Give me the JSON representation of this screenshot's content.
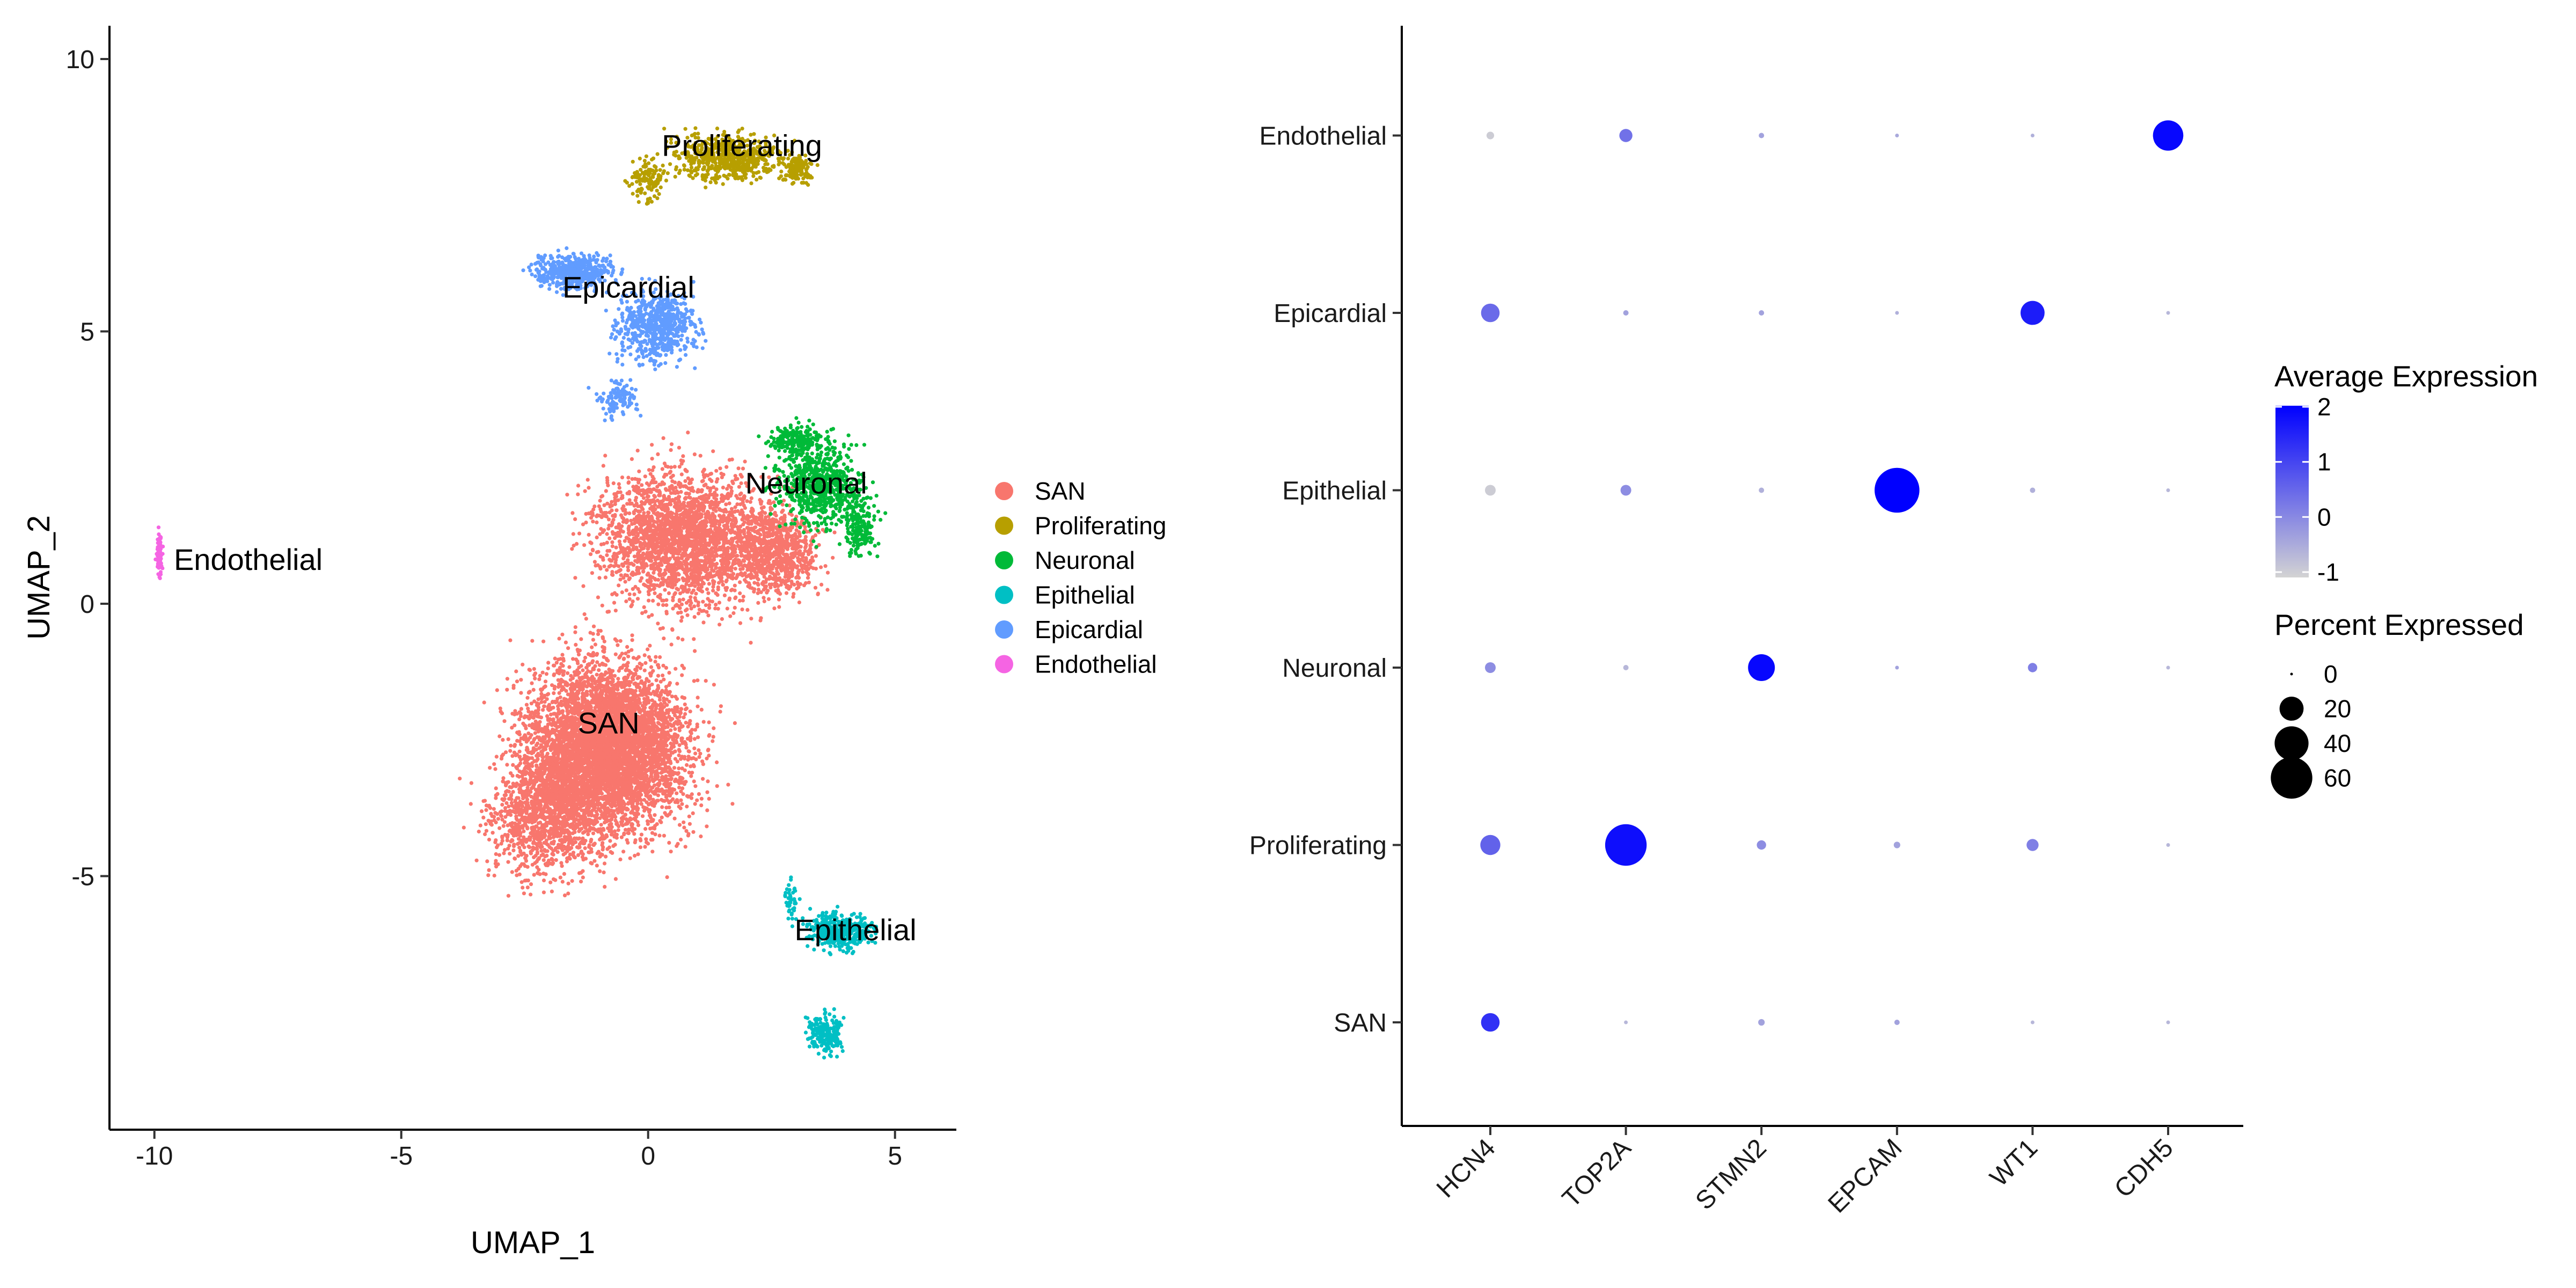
{
  "chart_data": [
    {
      "type": "scatter",
      "xlabel": "UMAP_1",
      "ylabel": "UMAP_2",
      "xlim": [
        -11.0,
        6.1
      ],
      "ylim": [
        -9.5,
        10.5
      ],
      "xticks": [
        -10,
        -5,
        0,
        5
      ],
      "yticks": [
        -5,
        0,
        5,
        10
      ],
      "xtick_labels": [
        "-10",
        "-5",
        "0",
        "5"
      ],
      "ytick_labels": [
        "-5",
        "0",
        "5",
        "10"
      ],
      "grid": false,
      "legend_position": "right",
      "series": [
        {
          "name": "SAN",
          "color": "#F8766D",
          "label_at": [
            -0.8,
            -2.2
          ]
        },
        {
          "name": "Proliferating",
          "color": "#B79F00",
          "label_at": [
            1.9,
            8.4
          ]
        },
        {
          "name": "Neuronal",
          "color": "#00BA38",
          "label_at": [
            3.2,
            2.2
          ]
        },
        {
          "name": "Epithelial",
          "color": "#00BFC4",
          "label_at": [
            4.2,
            -6.0
          ]
        },
        {
          "name": "Epicardial",
          "color": "#619CFF",
          "label_at": [
            -0.4,
            5.8
          ]
        },
        {
          "name": "Endothelial",
          "color": "#F564E3",
          "label_at": [
            -8.1,
            0.8
          ]
        }
      ]
    },
    {
      "type": "dot",
      "categories_x": [
        "HCN4",
        "TOP2A",
        "STMN2",
        "EPCAM",
        "WT1",
        "CDH5"
      ],
      "categories_y": [
        "SAN",
        "Proliferating",
        "Neuronal",
        "Epithelial",
        "Epicardial",
        "Endothelial"
      ],
      "color_legend": {
        "title": "Average Expression",
        "range": [
          -1,
          2
        ],
        "ticks": [
          2,
          1,
          0,
          -1
        ],
        "tick_labels": [
          "2",
          "1",
          "0",
          "-1"
        ],
        "low_color": "#D3D3D3",
        "high_color": "#0000FF"
      },
      "size_legend": {
        "title": "Percent Expressed",
        "values": [
          0,
          20,
          40,
          60
        ],
        "labels": [
          "0",
          "20",
          "40",
          "60"
        ]
      },
      "points": [
        {
          "x": "HCN4",
          "y": "SAN",
          "avg_exp": 1.3,
          "pct": 12
        },
        {
          "x": "TOP2A",
          "y": "SAN",
          "avg_exp": -0.6,
          "pct": 0.5
        },
        {
          "x": "STMN2",
          "y": "SAN",
          "avg_exp": -0.3,
          "pct": 1.5
        },
        {
          "x": "EPCAM",
          "y": "SAN",
          "avg_exp": -0.3,
          "pct": 1
        },
        {
          "x": "WT1",
          "y": "SAN",
          "avg_exp": -0.6,
          "pct": 0.5
        },
        {
          "x": "CDH5",
          "y": "SAN",
          "avg_exp": -0.6,
          "pct": 0.5
        },
        {
          "x": "HCN4",
          "y": "Proliferating",
          "avg_exp": 0.6,
          "pct": 14
        },
        {
          "x": "TOP2A",
          "y": "Proliferating",
          "avg_exp": 1.8,
          "pct": 60
        },
        {
          "x": "STMN2",
          "y": "Proliferating",
          "avg_exp": 0.0,
          "pct": 3
        },
        {
          "x": "EPCAM",
          "y": "Proliferating",
          "avg_exp": -0.3,
          "pct": 1.5
        },
        {
          "x": "WT1",
          "y": "Proliferating",
          "avg_exp": 0.2,
          "pct": 5
        },
        {
          "x": "CDH5",
          "y": "Proliferating",
          "avg_exp": -0.6,
          "pct": 0.5
        },
        {
          "x": "HCN4",
          "y": "Neuronal",
          "avg_exp": 0.0,
          "pct": 4
        },
        {
          "x": "TOP2A",
          "y": "Neuronal",
          "avg_exp": -0.6,
          "pct": 1
        },
        {
          "x": "STMN2",
          "y": "Neuronal",
          "avg_exp": 1.9,
          "pct": 25
        },
        {
          "x": "EPCAM",
          "y": "Neuronal",
          "avg_exp": -0.3,
          "pct": 0.5
        },
        {
          "x": "WT1",
          "y": "Neuronal",
          "avg_exp": 0.2,
          "pct": 3
        },
        {
          "x": "CDH5",
          "y": "Neuronal",
          "avg_exp": -0.6,
          "pct": 0.5
        },
        {
          "x": "HCN4",
          "y": "Epithelial",
          "avg_exp": -0.9,
          "pct": 4
        },
        {
          "x": "TOP2A",
          "y": "Epithelial",
          "avg_exp": 0.0,
          "pct": 4
        },
        {
          "x": "STMN2",
          "y": "Epithelial",
          "avg_exp": -0.5,
          "pct": 1
        },
        {
          "x": "EPCAM",
          "y": "Epithelial",
          "avg_exp": 2.0,
          "pct": 70
        },
        {
          "x": "WT1",
          "y": "Epithelial",
          "avg_exp": -0.5,
          "pct": 1
        },
        {
          "x": "CDH5",
          "y": "Epithelial",
          "avg_exp": -0.6,
          "pct": 0.5
        },
        {
          "x": "HCN4",
          "y": "Epicardial",
          "avg_exp": 0.5,
          "pct": 12
        },
        {
          "x": "TOP2A",
          "y": "Epicardial",
          "avg_exp": -0.3,
          "pct": 1
        },
        {
          "x": "STMN2",
          "y": "Epicardial",
          "avg_exp": -0.3,
          "pct": 1
        },
        {
          "x": "EPCAM",
          "y": "Epicardial",
          "avg_exp": -0.5,
          "pct": 0.5
        },
        {
          "x": "WT1",
          "y": "Epicardial",
          "avg_exp": 1.6,
          "pct": 20
        },
        {
          "x": "CDH5",
          "y": "Epicardial",
          "avg_exp": -0.6,
          "pct": 0.5
        },
        {
          "x": "HCN4",
          "y": "Endothelial",
          "avg_exp": -0.9,
          "pct": 2
        },
        {
          "x": "TOP2A",
          "y": "Endothelial",
          "avg_exp": 0.4,
          "pct": 6
        },
        {
          "x": "STMN2",
          "y": "Endothelial",
          "avg_exp": -0.3,
          "pct": 1
        },
        {
          "x": "EPCAM",
          "y": "Endothelial",
          "avg_exp": -0.4,
          "pct": 0.5
        },
        {
          "x": "WT1",
          "y": "Endothelial",
          "avg_exp": -0.5,
          "pct": 0.5
        },
        {
          "x": "CDH5",
          "y": "Endothelial",
          "avg_exp": 1.9,
          "pct": 32
        }
      ]
    }
  ]
}
